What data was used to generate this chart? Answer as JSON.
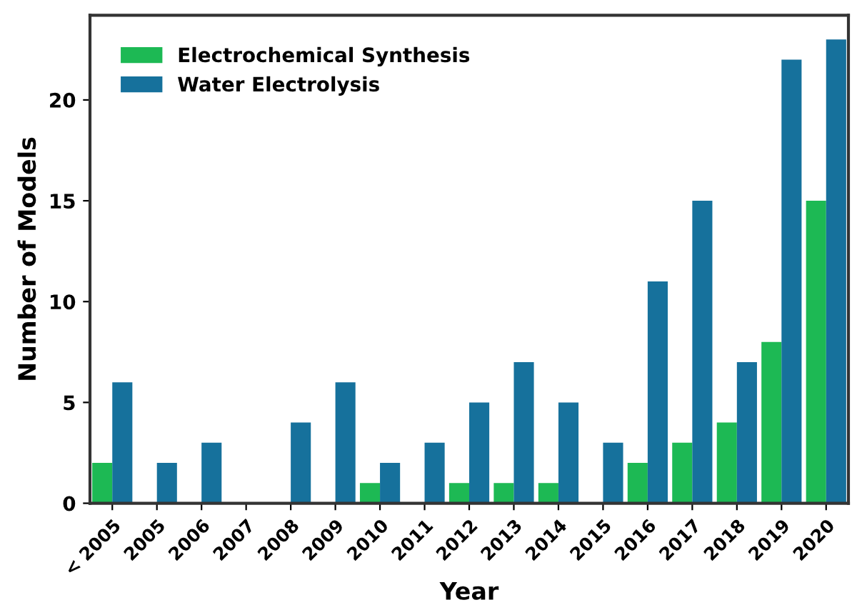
{
  "chart_data": {
    "type": "bar",
    "xlabel": "Year",
    "ylabel": "Number of Models",
    "categories": [
      "< 2005",
      "2005",
      "2006",
      "2007",
      "2008",
      "2009",
      "2010",
      "2011",
      "2012",
      "2013",
      "2014",
      "2015",
      "2016",
      "2017",
      "2018",
      "2019",
      "2020"
    ],
    "series": [
      {
        "name": "Electrochemical Synthesis",
        "color": "#1db954",
        "values": [
          2,
          0,
          0,
          0,
          0,
          0,
          1,
          0,
          1,
          1,
          1,
          0,
          2,
          3,
          4,
          8,
          15
        ]
      },
      {
        "name": "Water Electrolysis",
        "color": "#16719c",
        "values": [
          6,
          2,
          3,
          0,
          4,
          6,
          2,
          3,
          5,
          7,
          5,
          3,
          11,
          15,
          7,
          22,
          23
        ]
      }
    ],
    "ylim": [
      0,
      24.2
    ],
    "yticks": [
      0,
      5,
      10,
      15,
      20
    ],
    "grid": false,
    "legend": "top left"
  }
}
